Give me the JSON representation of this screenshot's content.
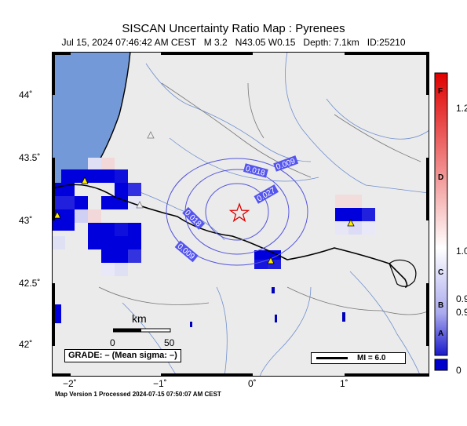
{
  "header": {
    "title": "SISCAN Uncertainty Ratio Map : Pyrenees",
    "subtitle": "Jul 15, 2024 07:46:42 AM CEST   M 3.2   N43.05 W0.15   Depth: 7.1km   ID:25210"
  },
  "footer": {
    "text": "Map Version 1 Processed 2024-07-15 07:50:07 AM CEST"
  },
  "axes": {
    "lat_labels": [
      "44˚",
      "43.5˚",
      "43˚",
      "42.5˚",
      "42˚"
    ],
    "lon_labels": [
      "−2˚",
      "−1˚",
      "0˚",
      "1˚"
    ]
  },
  "epicenter": {
    "lat": 43.05,
    "lon": -0.15,
    "symbol": "star"
  },
  "contours": [
    {
      "label": "0.009"
    },
    {
      "label": "0.018"
    },
    {
      "label": "0.027"
    },
    {
      "label": "0.018"
    },
    {
      "label": "0.009"
    }
  ],
  "scale_bar": {
    "unit": "km",
    "start": "0",
    "end": "50"
  },
  "grade_box": {
    "text": "GRADE: – (Mean sigma: –)"
  },
  "mi_box": {
    "text": "MI = 6.0"
  },
  "legend": {
    "letters": [
      "F",
      "D",
      "C",
      "B",
      "A"
    ],
    "values": [
      "1.2",
      "1.0",
      "0.9",
      "0.9",
      "0"
    ],
    "colors": {
      "high": "#e00000",
      "mid": "#ffffff",
      "low": "#1010d0"
    }
  },
  "colors": {
    "sea": "#7399d8",
    "land": "#ebebeb",
    "accent": "#0000cc"
  }
}
